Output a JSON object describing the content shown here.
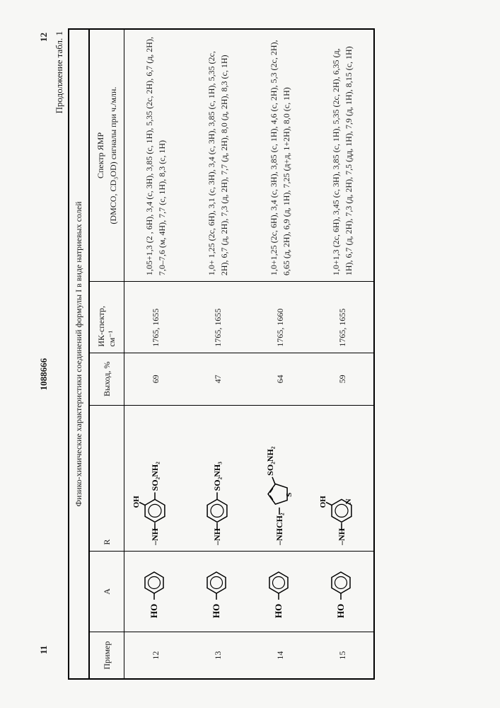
{
  "header": {
    "left_page": "11",
    "patent_no": "1088666",
    "right_page": "12"
  },
  "caption": "Продолжение табл. 1",
  "table": {
    "title": "Физико-химические характеристики соединений формулы I в виде натриевых солей",
    "columns": {
      "primer": "Пример",
      "a": "A",
      "r": "R",
      "yield": "Выход, %",
      "ir": "ИК-спектр,\nсм⁻¹",
      "nmr": "Спектр ЯМР\n(DMСО, CD₃OD) сигналы при ч./млн."
    },
    "rows": [
      {
        "n": "12",
        "a": {
          "type": "phenol",
          "label": "HO"
        },
        "r": {
          "label": "–NH",
          "top": "OH",
          "right": "SO₂NH₂",
          "kind": "benzene-12"
        },
        "yield": "69",
        "ir": "1765, 1655",
        "nmr": "1,05+1,3 (2 , 6H), 3,4 (с, 3H), 3,85 (с, 1H), 5,35 (2с, 2H), 6,7 (д, 2H), 7,0–7,6 (м, 4H), 7,7 (с, 1H), 8,3 (с, 1H)"
      },
      {
        "n": "13",
        "a": {
          "type": "phenol",
          "label": "HO"
        },
        "r": {
          "label": "–NH",
          "right": "SO₂NH₃",
          "kind": "benzene-13"
        },
        "yield": "47",
        "ir": "1765, 1655",
        "nmr": "1,0+ 1,25 (2с, 6H), 3,1 (с, 3H), 3,4 (с, 3H), 3,85 (с, 1H), 5,35 (2с, 2H), 6,7 (д, 2H), 7,3 (д, 2H), 7,7 (д, 2H), 8,0 (д, 2H), 8,3 (с, 1H)"
      },
      {
        "n": "14",
        "a": {
          "type": "phenol",
          "label": "HO"
        },
        "r": {
          "label": "–NHCH₂",
          "right": "SO₂NH₂",
          "kind": "thiophene-14"
        },
        "yield": "64",
        "ir": "1765, 1660",
        "nmr": "1,0+1,25 (2с, 6H), 3,4 (с, 3H), 3,85 (с, 1H), 4,6 (с, 2H), 5,3 (2с, 2H), 6,65 (д, 2H), 6,9 (д, 1H), 7,25 (д+д, 1+2H), 8,0 (с, 1H)"
      },
      {
        "n": "15",
        "a": {
          "type": "phenol",
          "label": "HO"
        },
        "r": {
          "label": "–NH",
          "top": "OH",
          "kind": "pyridine-15"
        },
        "yield": "59",
        "ir": "1765, 1655",
        "nmr": "1,0+1,3 (2с, 6H), 3,45 (с, 3H), 3,85 (с, 1H), 5,35 (2с, 2H), 6,35 (д, 1H), 6,7 (д, 2H), 7,3 (д, 2H), 7,5 (дд, 1H), 7,9 (д, 1H), 8,15 (с, 1H)"
      }
    ]
  },
  "style": {
    "bg": "#f7f7f5",
    "text": "#1a1a1a",
    "border": "#000000",
    "font_body_pt": 12,
    "font_header_pt": 13,
    "line_height": 1.5
  }
}
